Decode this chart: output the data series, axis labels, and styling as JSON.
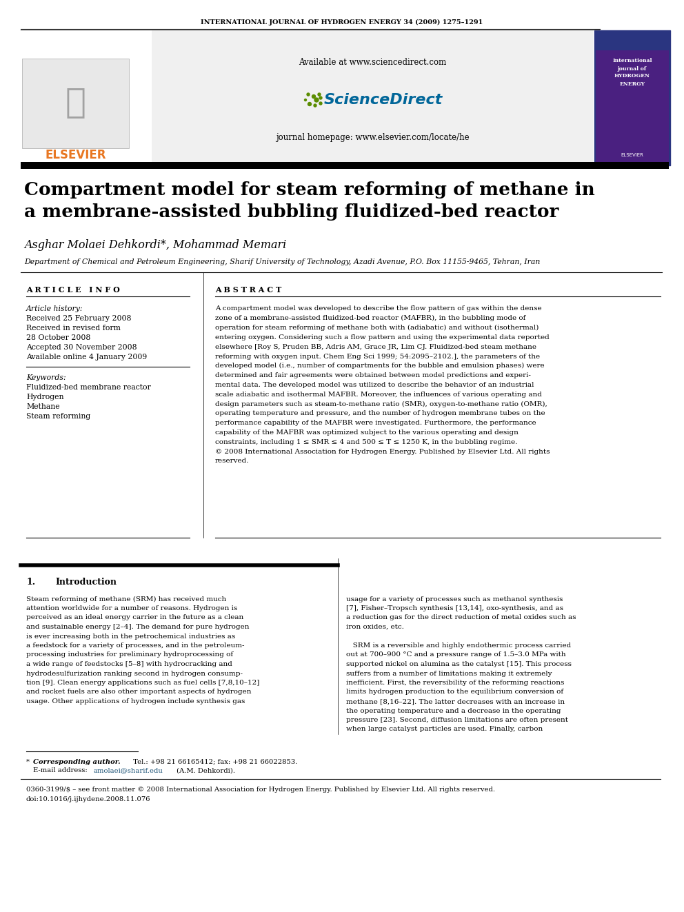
{
  "journal_header": "INTERNATIONAL JOURNAL OF HYDROGEN ENERGY 34 (2009) 1275–1291",
  "title_line1": "Compartment model for steam reforming of methane in",
  "title_line2": "a membrane-assisted bubbling fluidized-bed reactor",
  "authors": "Asghar Molaei Dehkordi*, Mohammad Memari",
  "affiliation": "Department of Chemical and Petroleum Engineering, Sharif University of Technology, Azadi Avenue, P.O. Box 11155-9465, Tehran, Iran",
  "article_info_header": "A R T I C L E   I N F O",
  "abstract_header": "A B S T R A C T",
  "article_history_label": "Article history:",
  "received1": "Received 25 February 2008",
  "received2": "Received in revised form",
  "received2b": "28 October 2008",
  "accepted": "Accepted 30 November 2008",
  "available": "Available online 4 January 2009",
  "keywords_label": "Keywords:",
  "keyword1": "Fluidized-bed membrane reactor",
  "keyword2": "Hydrogen",
  "keyword3": "Methane",
  "keyword4": "Steam reforming",
  "intro_header_num": "1.",
  "intro_header_text": "Introduction",
  "footnote1a": "* Corresponding author.",
  "footnote1b": " Tel.: +98 21 66165412; fax: +98 21 66022853.",
  "footnote2a": "E-mail address: ",
  "footnote2b": "amolaei@sharif.edu",
  "footnote2c": " (A.M. Dehkordi).",
  "footnote3": "0360-3199/$ – see front matter © 2008 International Association for Hydrogen Energy. Published by Elsevier Ltd. All rights reserved.",
  "footnote4": "doi:10.1016/j.ijhydene.2008.11.076",
  "bg_color": "#ffffff",
  "gray_bg": "#f0f0f0",
  "text_color": "#000000",
  "elsevier_orange": "#e87722",
  "blue_link": "#1a5276",
  "sci_direct_green": "#5a8c00",
  "sci_direct_blue": "#006699"
}
